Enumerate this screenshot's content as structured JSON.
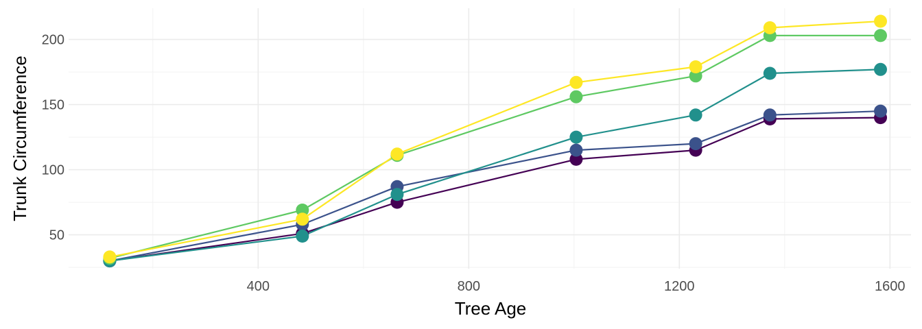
{
  "chart_data": {
    "type": "line",
    "title": "",
    "xlabel": "Tree Age",
    "ylabel": "Trunk Circumference",
    "x": [
      118,
      484,
      664,
      1004,
      1231,
      1372,
      1582
    ],
    "xlim": [
      40,
      1640
    ],
    "ylim": [
      24,
      224
    ],
    "x_ticks": [
      400,
      800,
      1200,
      1600
    ],
    "y_ticks": [
      50,
      100,
      150,
      200
    ],
    "x_tick_labels": [
      "400",
      "800",
      "1200",
      "1600"
    ],
    "y_tick_labels": [
      "50",
      "100",
      "150",
      "200"
    ],
    "grid": true,
    "legend": "none",
    "series": [
      {
        "color": "#440154",
        "values": [
          30,
          51,
          75,
          108,
          115,
          139,
          140
        ]
      },
      {
        "color": "#3b528b",
        "values": [
          30,
          58,
          87,
          115,
          120,
          142,
          145
        ]
      },
      {
        "color": "#21908c",
        "values": [
          30,
          49,
          81,
          125,
          142,
          174,
          177
        ]
      },
      {
        "color": "#5ec962",
        "values": [
          32,
          69,
          111,
          156,
          172,
          203,
          203
        ]
      },
      {
        "color": "#fde725",
        "values": [
          33,
          62,
          112,
          167,
          179,
          209,
          214
        ]
      }
    ]
  }
}
